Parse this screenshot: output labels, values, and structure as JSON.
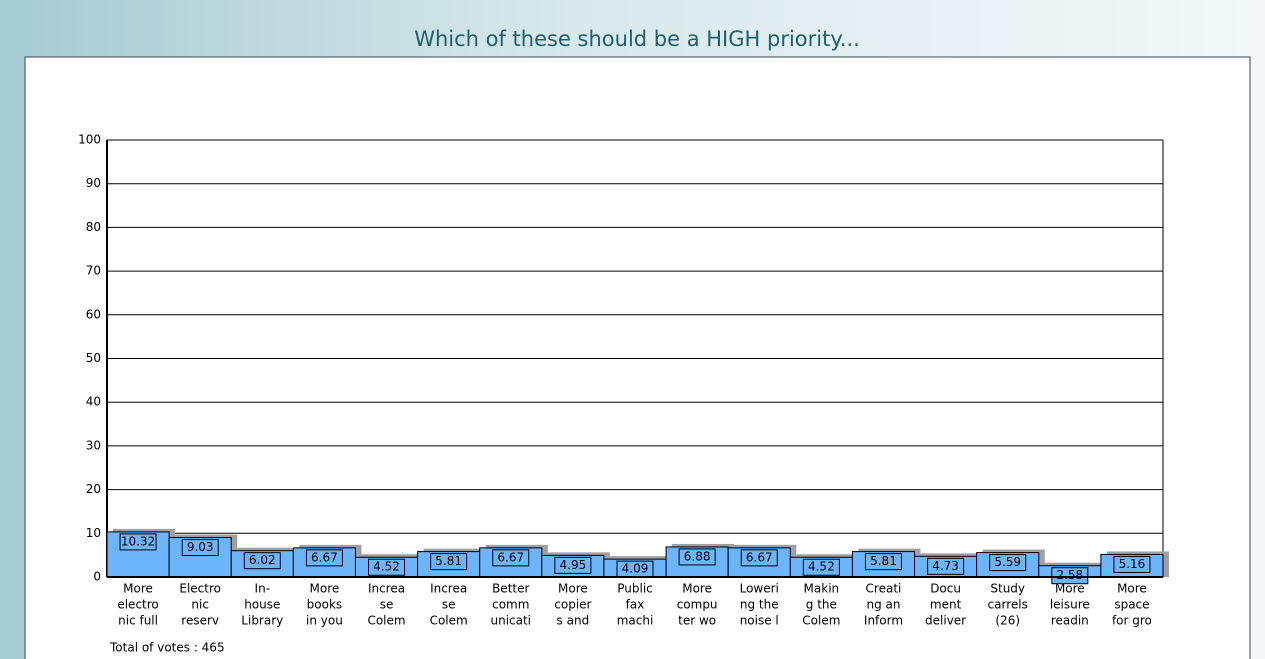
{
  "chart_data": {
    "type": "bar",
    "title": "Which of these should be a HIGH priority...",
    "categories": [
      [
        "More",
        "electro",
        "nic full"
      ],
      [
        "Electro",
        "nic",
        "reserv"
      ],
      [
        "In-",
        "house",
        "Library"
      ],
      [
        "More",
        "books",
        "in you"
      ],
      [
        "Increa",
        "se",
        "Colem"
      ],
      [
        "Increa",
        "se",
        "Colem"
      ],
      [
        "Better",
        "comm",
        "unicati"
      ],
      [
        "More",
        "copier",
        "s and"
      ],
      [
        "Public",
        "fax",
        "machi"
      ],
      [
        "More",
        "compu",
        "ter wo"
      ],
      [
        "Loweri",
        "ng the",
        "noise l"
      ],
      [
        "Makin",
        "g the",
        "Colem"
      ],
      [
        "Creati",
        "ng an",
        "Inform"
      ],
      [
        "Docu",
        "ment",
        "deliver"
      ],
      [
        "Study",
        "carrels",
        "(26)"
      ],
      [
        "More",
        "leisure",
        "readin"
      ],
      [
        "More",
        "space",
        "for gro"
      ]
    ],
    "values": [
      10.32,
      9.03,
      6.02,
      6.67,
      4.52,
      5.81,
      6.67,
      4.95,
      4.09,
      6.88,
      6.67,
      4.52,
      5.81,
      4.73,
      5.59,
      2.58,
      5.16
    ],
    "color": "#6cb4fb",
    "ylim": [
      0,
      100
    ],
    "yticks": [
      0,
      10,
      20,
      30,
      40,
      50,
      60,
      70,
      80,
      90,
      100
    ],
    "grid": true,
    "footer": "Total of votes : 465"
  }
}
